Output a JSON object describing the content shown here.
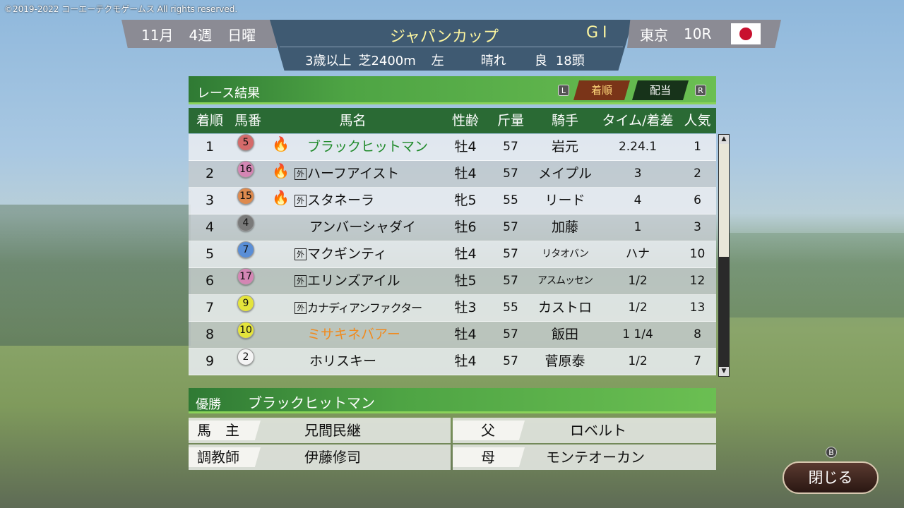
{
  "copyright": "©2019-2022 コーエーテクモゲームス All rights reserved.",
  "header": {
    "month": "11月",
    "week": "4週",
    "day": "日曜",
    "race_name": "ジャパンカップ",
    "grade": "GI",
    "age": "3歳以上",
    "surface": "芝2400m",
    "direction": "左",
    "weather": "晴れ",
    "track": "良",
    "runners": "18頭",
    "venue": "東京",
    "race_no": "10R",
    "flag": "japan-flag"
  },
  "results_panel": {
    "title": "レース結果",
    "key_left": "L",
    "key_right": "R",
    "tabs": [
      {
        "label": "着順",
        "active": true
      },
      {
        "label": "配当",
        "active": false
      }
    ]
  },
  "columns": [
    "着順",
    "馬番",
    "馬名",
    "性齢",
    "斤量",
    "騎手",
    "タイム/着差",
    "人気"
  ],
  "rows": [
    {
      "pos": "1",
      "num": "5",
      "color": "#d46a6a",
      "flame": true,
      "gai": false,
      "name": "ブラックヒットマン",
      "name_color": "#1f8a2a",
      "sexage": "牡4",
      "weight": "57",
      "jockey": "岩元",
      "time": "2.24.1",
      "pop": "1"
    },
    {
      "pos": "2",
      "num": "16",
      "color": "#d486b4",
      "flame": true,
      "gai": true,
      "name": "ハーフアイスト",
      "sexage": "牡4",
      "weight": "57",
      "jockey": "メイプル",
      "time": "3",
      "pop": "2"
    },
    {
      "pos": "3",
      "num": "15",
      "color": "#de8a4e",
      "flame": true,
      "gai": true,
      "name": "スタネーラ",
      "sexage": "牝5",
      "weight": "55",
      "jockey": "リード",
      "time": "4",
      "pop": "6"
    },
    {
      "pos": "4",
      "num": "4",
      "color": "#7a7a7a",
      "flame": false,
      "gai": false,
      "name": "アンバーシャダイ",
      "sexage": "牡6",
      "weight": "57",
      "jockey": "加藤",
      "time": "1",
      "pop": "3"
    },
    {
      "pos": "5",
      "num": "7",
      "color": "#5a8ed6",
      "flame": false,
      "gai": true,
      "name": "マクギンティ",
      "sexage": "牡4",
      "weight": "57",
      "jockey": "リタオバン",
      "time": "ハナ",
      "pop": "10"
    },
    {
      "pos": "6",
      "num": "17",
      "color": "#d486b4",
      "flame": false,
      "gai": true,
      "name": "エリンズアイル",
      "sexage": "牡5",
      "weight": "57",
      "jockey": "アスムッセン",
      "time": "1/2",
      "pop": "12"
    },
    {
      "pos": "7",
      "num": "9",
      "color": "#e4e43c",
      "flame": false,
      "gai": true,
      "name": "カナディアンファクター",
      "sexage": "牡3",
      "weight": "55",
      "jockey": "カストロ",
      "time": "1/2",
      "pop": "13"
    },
    {
      "pos": "8",
      "num": "10",
      "color": "#e4e43c",
      "flame": false,
      "gai": false,
      "name": "ミサキネバアー",
      "name_color": "#f08a1e",
      "sexage": "牡4",
      "weight": "57",
      "jockey": "飯田",
      "time": "1 1/4",
      "pop": "8"
    },
    {
      "pos": "9",
      "num": "2",
      "color": "#f4f4f4",
      "flame": false,
      "gai": false,
      "name": "ホリスキー",
      "sexage": "牡4",
      "weight": "57",
      "jockey": "菅原泰",
      "time": "1/2",
      "pop": "7"
    }
  ],
  "gai_mark": "外",
  "winner": {
    "label": "優勝",
    "name": "ブラックヒットマン",
    "owner_label": "馬　主",
    "owner": "兄間民継",
    "trainer_label": "調教師",
    "trainer": "伊藤修司",
    "sire_label": "父",
    "sire": "ロベルト",
    "dam_label": "母",
    "dam": "モンテオーカン"
  },
  "close": {
    "key": "B",
    "label": "閉じる"
  }
}
